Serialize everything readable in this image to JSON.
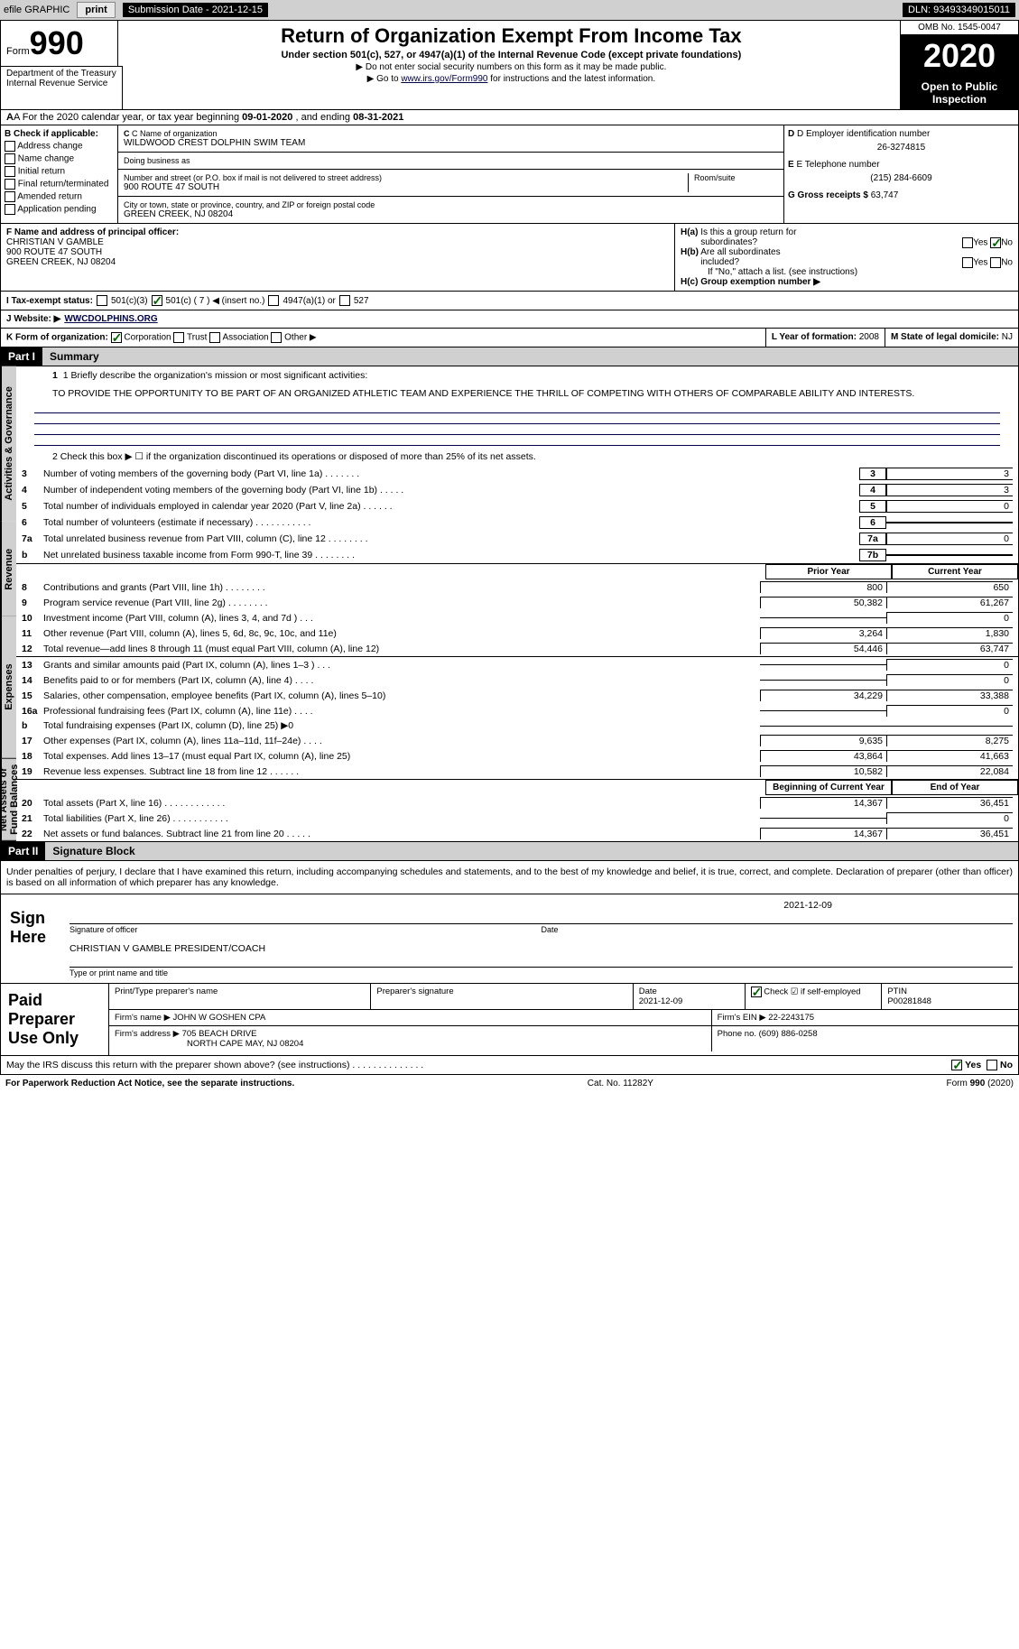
{
  "topbar": {
    "efile": "efile GRAPHIC",
    "print": "print",
    "subdate_label": "Submission Date - ",
    "subdate": "2021-12-15",
    "dln_label": "DLN: ",
    "dln": "93493349015011"
  },
  "header": {
    "form_label": "Form",
    "form_num": "990",
    "dept": "Department of the Treasury\nInternal Revenue Service",
    "title": "Return of Organization Exempt From Income Tax",
    "subtitle": "Under section 501(c), 527, or 4947(a)(1) of the Internal Revenue Code (except private foundations)",
    "note1": "▶ Do not enter social security numbers on this form as it may be made public.",
    "note2_pre": "▶ Go to ",
    "note2_link": "www.irs.gov/Form990",
    "note2_post": " for instructions and the latest information.",
    "omb": "OMB No. 1545-0047",
    "year": "2020",
    "inspect": "Open to Public Inspection"
  },
  "period": {
    "label_a": "A For the 2020 calendar year, or tax year beginning ",
    "begin": "09-01-2020",
    "mid": " , and ending ",
    "end": "08-31-2021"
  },
  "b": {
    "label": "B Check if applicable:",
    "opts": [
      "Address change",
      "Name change",
      "Initial return",
      "Final return/terminated",
      "Amended return",
      "Application pending"
    ]
  },
  "c": {
    "name_label": "C Name of organization",
    "name": "WILDWOOD CREST DOLPHIN SWIM TEAM",
    "dba_label": "Doing business as",
    "street_label": "Number and street (or P.O. box if mail is not delivered to street address)",
    "room_label": "Room/suite",
    "street": "900 ROUTE 47 SOUTH",
    "city_label": "City or town, state or province, country, and ZIP or foreign postal code",
    "city": "GREEN CREEK, NJ  08204"
  },
  "d": {
    "ein_label": "D Employer identification number",
    "ein": "26-3274815",
    "phone_label": "E Telephone number",
    "phone": "(215) 284-6609",
    "gross_label": "G Gross receipts $ ",
    "gross": "63,747"
  },
  "f": {
    "label": "F Name and address of principal officer:",
    "name": "CHRISTIAN V GAMBLE",
    "street": "900 ROUTE 47 SOUTH",
    "city": "GREEN CREEK, NJ  08204"
  },
  "h": {
    "a_label": "H(a) Is this a group return for subordinates?",
    "b_label": "H(b) Are all subordinates included?",
    "b_note": "If \"No,\" attach a list. (see instructions)",
    "c_label": "H(c) Group exemption number ▶",
    "yes": "Yes",
    "no": "No"
  },
  "i": {
    "label": "I   Tax-exempt status:",
    "opt1": "501(c)(3)",
    "opt2": "501(c) ( 7 ) ◀ (insert no.)",
    "opt3": "4947(a)(1) or",
    "opt4": "527"
  },
  "j": {
    "label": "J   Website: ▶ ",
    "value": "WWCDOLPHINS.ORG"
  },
  "k": {
    "label": "K Form of organization:",
    "corp": "Corporation",
    "trust": "Trust",
    "assoc": "Association",
    "other": "Other ▶"
  },
  "l": {
    "label": "L Year of formation: ",
    "value": "2008"
  },
  "m": {
    "label": "M State of legal domicile: ",
    "value": "NJ"
  },
  "part1": {
    "header": "Part I",
    "title": "Summary",
    "line1_label": "1  Briefly describe the organization's mission or most significant activities:",
    "line1_text": "TO PROVIDE THE OPPORTUNITY TO BE PART OF AN ORGANIZED ATHLETIC TEAM AND EXPERIENCE THE THRILL OF COMPETING WITH OTHERS OF COMPARABLE ABILITY AND INTERESTS.",
    "line2": "2  Check this box ▶ ☐  if the organization discontinued its operations or disposed of more than 25% of its net assets.",
    "section_a": "Activities & Governance",
    "section_r": "Revenue",
    "section_e": "Expenses",
    "section_n": "Net Assets or Fund Balances",
    "col_prior": "Prior Year",
    "col_current": "Current Year",
    "col_begin": "Beginning of Current Year",
    "col_end": "End of Year",
    "rows_gov": [
      {
        "n": "3",
        "d": "Number of voting members of the governing body (Part VI, line 1a)   .    .    .    .    .    .    .",
        "box": "3",
        "v": "3"
      },
      {
        "n": "4",
        "d": "Number of independent voting members of the governing body (Part VI, line 1b)  .    .    .    .    .",
        "box": "4",
        "v": "3"
      },
      {
        "n": "5",
        "d": "Total number of individuals employed in calendar year 2020 (Part V, line 2a)  .    .    .    .    .    .",
        "box": "5",
        "v": "0"
      },
      {
        "n": "6",
        "d": "Total number of volunteers (estimate if necessary)   .    .    .    .    .    .    .    .    .    .    .",
        "box": "6",
        "v": ""
      },
      {
        "n": "7a",
        "d": "Total unrelated business revenue from Part VIII, column (C), line 12  .    .    .    .    .    .    .    .",
        "box": "7a",
        "v": "0"
      },
      {
        "n": "b",
        "d": "Net unrelated business taxable income from Form 990-T, line 39   .    .    .    .    .    .    .    .",
        "box": "7b",
        "v": ""
      }
    ],
    "rows_rev": [
      {
        "n": "8",
        "d": "Contributions and grants (Part VIII, line 1h)   .    .    .    .    .    .    .    .",
        "p": "800",
        "c": "650"
      },
      {
        "n": "9",
        "d": "Program service revenue (Part VIII, line 2g)   .    .    .    .    .    .    .    .",
        "p": "50,382",
        "c": "61,267"
      },
      {
        "n": "10",
        "d": "Investment income (Part VIII, column (A), lines 3, 4, and 7d )  .    .    .",
        "p": "",
        "c": "0"
      },
      {
        "n": "11",
        "d": "Other revenue (Part VIII, column (A), lines 5, 6d, 8c, 9c, 10c, and 11e)",
        "p": "3,264",
        "c": "1,830"
      },
      {
        "n": "12",
        "d": "Total revenue—add lines 8 through 11 (must equal Part VIII, column (A), line 12)",
        "p": "54,446",
        "c": "63,747"
      }
    ],
    "rows_exp": [
      {
        "n": "13",
        "d": "Grants and similar amounts paid (Part IX, column (A), lines 1–3 )  .    .    .",
        "p": "",
        "c": "0"
      },
      {
        "n": "14",
        "d": "Benefits paid to or for members (Part IX, column (A), line 4)  .    .    .    .",
        "p": "",
        "c": "0"
      },
      {
        "n": "15",
        "d": "Salaries, other compensation, employee benefits (Part IX, column (A), lines 5–10)",
        "p": "34,229",
        "c": "33,388"
      },
      {
        "n": "16a",
        "d": "Professional fundraising fees (Part IX, column (A), line 11e)   .    .    .    .",
        "p": "",
        "c": "0"
      },
      {
        "n": "b",
        "d": "Total fundraising expenses (Part IX, column (D), line 25) ▶0",
        "p": "shaded",
        "c": "shaded"
      },
      {
        "n": "17",
        "d": "Other expenses (Part IX, column (A), lines 11a–11d, 11f–24e)   .    .    .    .",
        "p": "9,635",
        "c": "8,275"
      },
      {
        "n": "18",
        "d": "Total expenses. Add lines 13–17 (must equal Part IX, column (A), line 25)",
        "p": "43,864",
        "c": "41,663"
      },
      {
        "n": "19",
        "d": "Revenue less expenses. Subtract line 18 from line 12  .    .    .    .    .    .",
        "p": "10,582",
        "c": "22,084"
      }
    ],
    "rows_net": [
      {
        "n": "20",
        "d": "Total assets (Part X, line 16)   .    .    .    .    .    .    .    .    .    .    .    .",
        "p": "14,367",
        "c": "36,451"
      },
      {
        "n": "21",
        "d": "Total liabilities (Part X, line 26)  .    .    .    .    .    .    .    .    .    .    .",
        "p": "",
        "c": "0"
      },
      {
        "n": "22",
        "d": "Net assets or fund balances. Subtract line 21 from line 20  .    .    .    .    .",
        "p": "14,367",
        "c": "36,451"
      }
    ]
  },
  "part2": {
    "header": "Part II",
    "title": "Signature Block",
    "decl": "Under penalties of perjury, I declare that I have examined this return, including accompanying schedules and statements, and to the best of my knowledge and belief, it is true, correct, and complete. Declaration of preparer (other than officer) is based on all information of which preparer has any knowledge.",
    "sign_label": "Sign Here",
    "sig_officer": "Signature of officer",
    "sig_date_label": "Date",
    "sig_date": "2021-12-09",
    "sig_name": "CHRISTIAN V GAMBLE  PRESIDENT/COACH",
    "sig_name_label": "Type or print name and title"
  },
  "paid": {
    "label": "Paid Preparer Use Only",
    "h1": "Print/Type preparer's name",
    "h2": "Preparer's signature",
    "h3": "Date",
    "h3v": "2021-12-09",
    "h4": "Check ☑ if self-employed",
    "h5": "PTIN",
    "h5v": "P00281848",
    "firm_name_label": "Firm's name    ▶ ",
    "firm_name": "JOHN W GOSHEN CPA",
    "firm_ein_label": "Firm's EIN ▶ ",
    "firm_ein": "22-2243175",
    "firm_addr_label": "Firm's address ▶ ",
    "firm_addr1": "705 BEACH DRIVE",
    "firm_addr2": "NORTH CAPE MAY, NJ  08204",
    "firm_phone_label": "Phone no. ",
    "firm_phone": "(609) 886-0258"
  },
  "discuss": {
    "q": "May the IRS discuss this return with the preparer shown above? (see instructions)    .    .    .    .    .    .    .    .    .    .    .    .    .    .",
    "yes": "Yes",
    "no": "No"
  },
  "footer": {
    "left": "For Paperwork Reduction Act Notice, see the separate instructions.",
    "mid": "Cat. No. 11282Y",
    "right": "Form 990 (2020)"
  }
}
